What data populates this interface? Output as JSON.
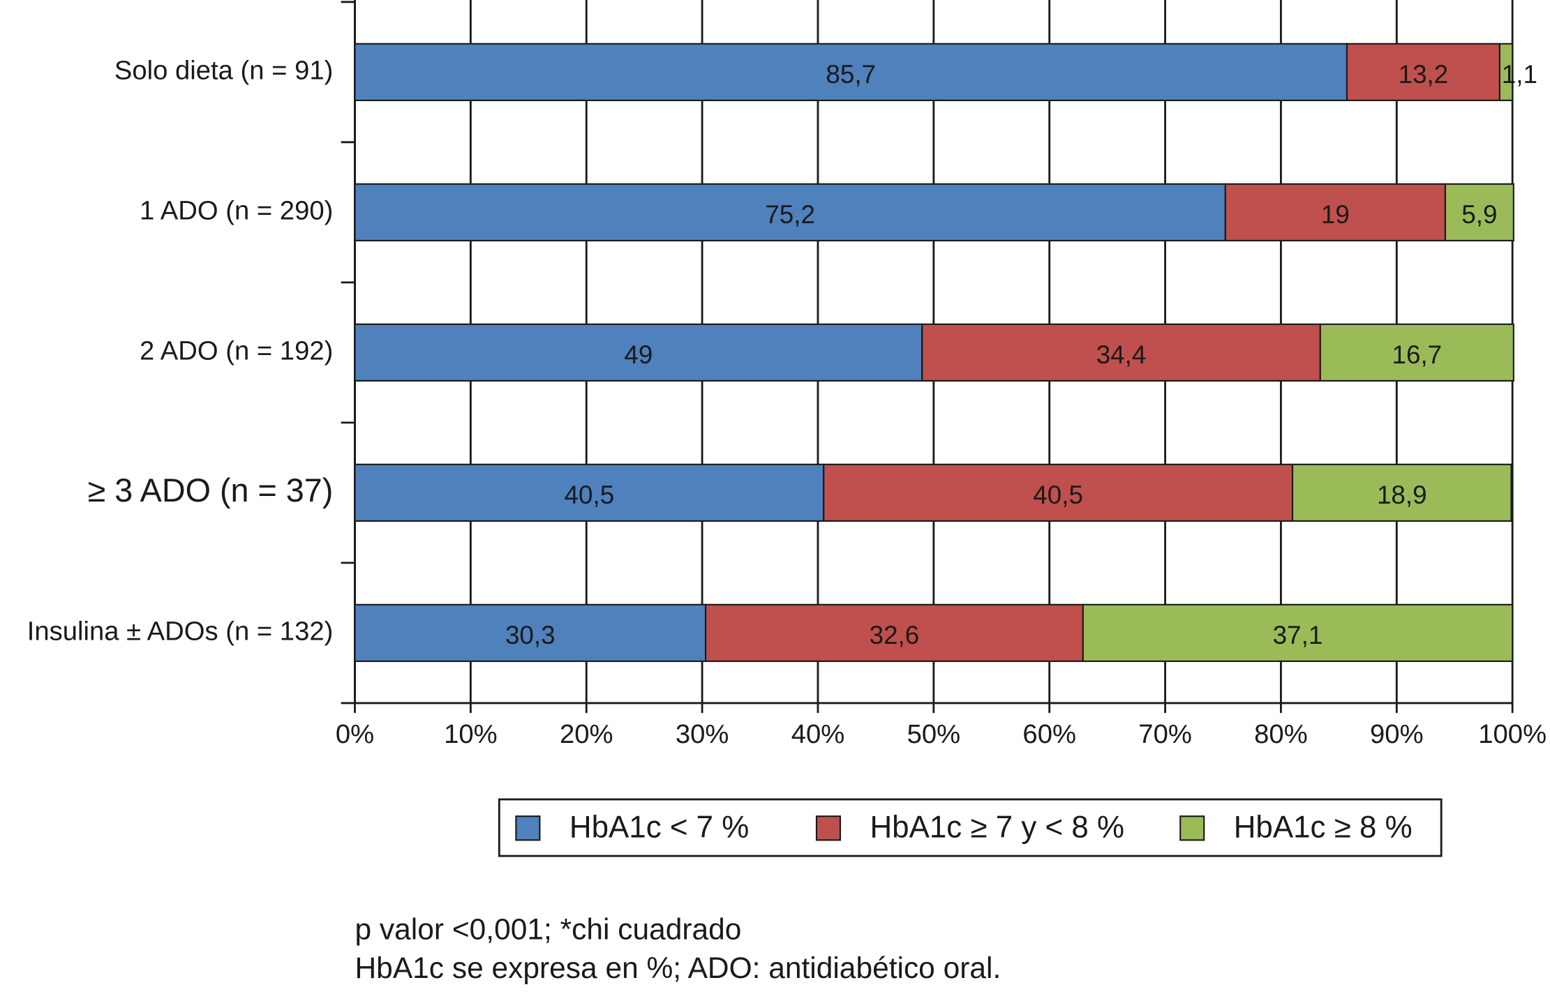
{
  "chart_data": {
    "type": "stacked-barh",
    "categories": [
      "Solo dieta (n = 91)",
      "1 ADO (n = 290)",
      "2 ADO (n = 192)",
      "≥ 3 ADO (n = 37)",
      "Insulina ± ADOs (n = 132)"
    ],
    "series": [
      {
        "name": "HbA1c < 7 %",
        "color": "#4f81bd",
        "values": [
          85.7,
          75.2,
          49,
          40.5,
          30.3
        ],
        "value_labels": [
          "85,7",
          "75,2",
          "49",
          "40,5",
          "30,3"
        ]
      },
      {
        "name": "HbA1c ≥ 7 y < 8 %",
        "color": "#c0504d",
        "values": [
          13.2,
          19,
          34.4,
          40.5,
          32.6
        ],
        "value_labels": [
          "13,2",
          "19",
          "34,4",
          "40,5",
          "32,6"
        ]
      },
      {
        "name": "HbA1c ≥ 8 %",
        "color": "#9bbb59",
        "values": [
          1.1,
          5.9,
          16.7,
          18.9,
          37.1
        ],
        "value_labels": [
          "1,1",
          "5,9",
          "16,7",
          "18,9",
          "37,1"
        ]
      }
    ],
    "xlim": [
      0,
      100
    ],
    "xticks": [
      {
        "value": 0,
        "label": "0%"
      },
      {
        "value": 10,
        "label": "10%"
      },
      {
        "value": 20,
        "label": "20%"
      },
      {
        "value": 30,
        "label": "30%"
      },
      {
        "value": 40,
        "label": "40%"
      },
      {
        "value": 50,
        "label": "50%"
      },
      {
        "value": 60,
        "label": "60%"
      },
      {
        "value": 70,
        "label": "70%"
      },
      {
        "value": 80,
        "label": "80%"
      },
      {
        "value": 90,
        "label": "90%"
      },
      {
        "value": 100,
        "label": "100%"
      }
    ],
    "grid": true,
    "legend": "bottom",
    "notes": [
      "p valor <0,001; *chi cuadrado",
      "HbA1c se expresa en %; ADO: antidiabético oral."
    ]
  }
}
